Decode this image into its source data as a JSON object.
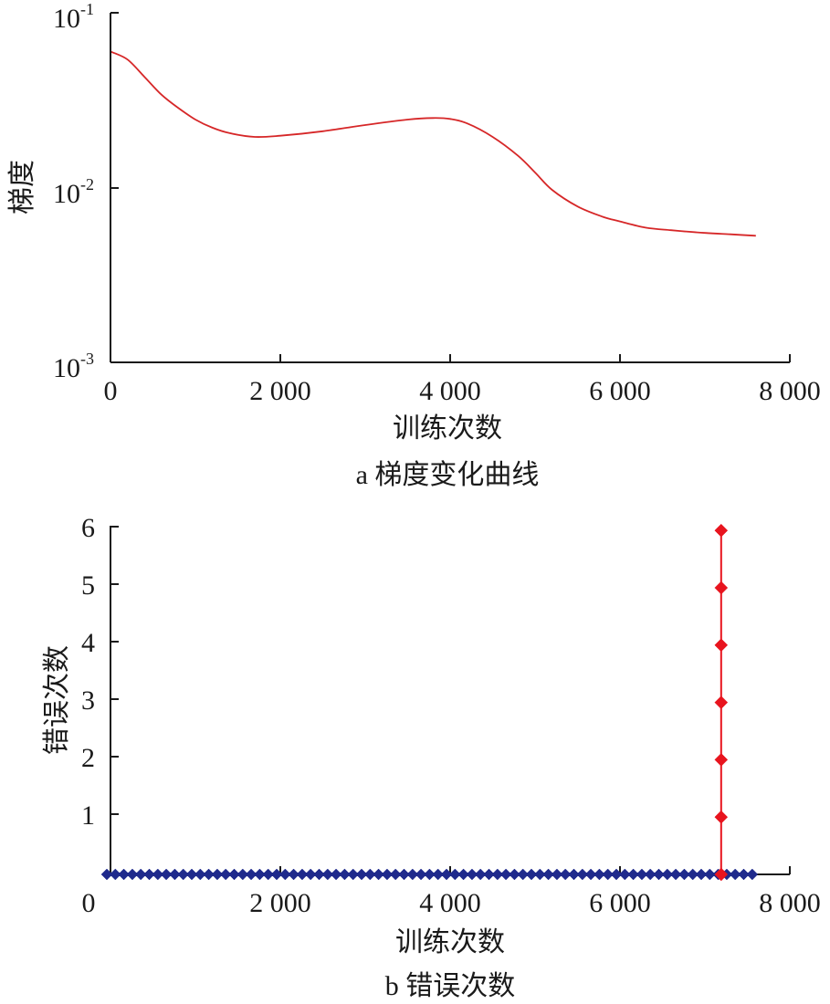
{
  "chart_data": [
    {
      "type": "line",
      "caption": "a 梯度变化曲线",
      "xlabel": "训练次数",
      "ylabel": "梯度",
      "yscale": "log",
      "xlim": [
        0,
        8000
      ],
      "ylim": [
        0.001,
        0.1
      ],
      "x_ticks": [
        "0",
        "2 000",
        "4 000",
        "6 000",
        "8 000"
      ],
      "y_ticks": [
        {
          "base": "10",
          "exp": "-3"
        },
        {
          "base": "10",
          "exp": "-2"
        },
        {
          "base": "10",
          "exp": "-1"
        }
      ],
      "grid": false,
      "series": [
        {
          "color": "#d62728",
          "x": [
            0,
            200,
            400,
            600,
            800,
            1000,
            1200,
            1400,
            1700,
            2000,
            2500,
            3000,
            3500,
            3800,
            4000,
            4200,
            4500,
            4800,
            5000,
            5200,
            5500,
            5800,
            6000,
            6300,
            6600,
            7000,
            7300,
            7600
          ],
          "y": [
            0.06,
            0.054,
            0.043,
            0.034,
            0.0285,
            0.0245,
            0.022,
            0.0205,
            0.0195,
            0.0198,
            0.021,
            0.0228,
            0.0245,
            0.025,
            0.0247,
            0.0233,
            0.0195,
            0.0152,
            0.0122,
            0.0097,
            0.0078,
            0.0068,
            0.0064,
            0.0059,
            0.0057,
            0.0055,
            0.0054,
            0.0053
          ]
        }
      ]
    },
    {
      "type": "scatter",
      "caption": "b 错误次数",
      "xlabel": "训练次数",
      "ylabel": "错误次数",
      "xlim": [
        0,
        8000
      ],
      "ylim": [
        -0.3,
        6.2
      ],
      "x_ticks": [
        "0",
        "2 000",
        "4 000",
        "6 000",
        "8 000"
      ],
      "y_ticks": [
        "1",
        "2",
        "3",
        "4",
        "5",
        "6"
      ],
      "grid": false,
      "series": [
        {
          "color": "#1f2a8c",
          "marker": "diamond",
          "x_start": 0,
          "x_end": 7600,
          "x_step": 100,
          "y": 0
        },
        {
          "color": "#e8141e",
          "marker": "diamond",
          "line": true,
          "x": [
            7600,
            7600,
            7600,
            7600,
            7600,
            7600,
            7600
          ],
          "y": [
            0,
            1,
            2,
            3,
            4,
            5,
            6
          ]
        }
      ]
    }
  ]
}
